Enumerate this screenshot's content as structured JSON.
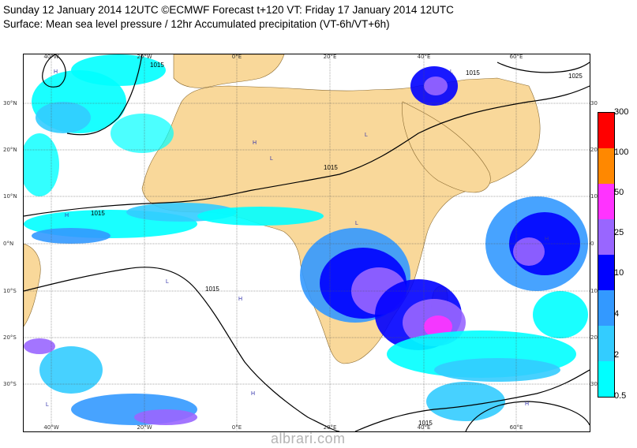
{
  "header": {
    "line1": "Sunday 12 January 2014 12UTC ©ECMWF Forecast t+120 VT: Friday 17 January 2014 12UTC",
    "line2": "Surface: Mean sea level pressure / 12hr Accumulated precipitation (VT-6h/VT+6h)"
  },
  "map": {
    "lon_labels_top": [
      "40°W",
      "20°W",
      "0°E",
      "20°E",
      "40°E",
      "60°E"
    ],
    "lon_labels_bottom": [
      "40°W",
      "20°W",
      "0°E",
      "20°E",
      "40°E",
      "60°E"
    ],
    "lat_labels_left": [
      "30°N",
      "20°N",
      "10°N",
      "0°N",
      "10°S",
      "20°S",
      "30°S"
    ],
    "lat_labels_right": [
      "30",
      "20",
      "10",
      "0",
      "10",
      "20",
      "30"
    ],
    "isobar_label": "1015",
    "isobar_labels": [
      "1015",
      "1015",
      "1015",
      "1015",
      "1015",
      "1015",
      "1025"
    ],
    "high_marker": "H",
    "low_marker": "L",
    "colors": {
      "land": "#f9d89a",
      "ocean": "#ffffff",
      "isobar": "#000000",
      "grid": "#555555"
    }
  },
  "legend": {
    "levels": [
      "0.5",
      "2",
      "4",
      "10",
      "25",
      "50",
      "100",
      "300"
    ],
    "colors": [
      "#00ffff",
      "#33ccff",
      "#3399ff",
      "#0000ff",
      "#9966ff",
      "#ff33ff",
      "#ff8800",
      "#ff0000"
    ]
  },
  "watermark": "albrari.com"
}
